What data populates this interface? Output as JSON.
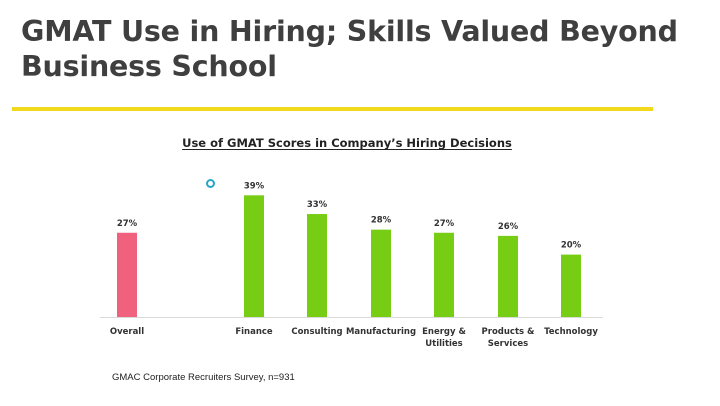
{
  "slide": {
    "title": "GMAT Use in Hiring; Skills Valued Beyond Business School",
    "footnote": "GMAC Corporate Recruiters Survey, n=931"
  },
  "colors": {
    "accent_rule": "#f3d91c",
    "overall_bar": "#f0617e",
    "industry_bar": "#77cc14",
    "marker": "#28a6c8"
  },
  "chart_data": {
    "type": "bar",
    "title": "Use of GMAT Scores in Company’s Hiring Decisions",
    "xlabel": "",
    "ylabel": "",
    "ylim": [
      0,
      45
    ],
    "grid": false,
    "legend": "none",
    "categories": [
      "Overall",
      "Finance",
      "Consulting",
      "Manufacturing",
      "Energy & Utilities",
      "Products & Services",
      "Technology"
    ],
    "category_lines": [
      [
        "Overall"
      ],
      [
        "Finance"
      ],
      [
        "Consulting"
      ],
      [
        "Manufacturing"
      ],
      [
        "Energy &",
        "Utilities"
      ],
      [
        "Products &",
        "Services"
      ],
      [
        "Technology"
      ]
    ],
    "values": [
      27,
      39,
      33,
      28,
      27,
      26,
      20
    ],
    "value_labels": [
      "27%",
      "39%",
      "33%",
      "28%",
      "27%",
      "26%",
      "20%"
    ],
    "bar_colors": [
      "#f0617e",
      "#77cc14",
      "#77cc14",
      "#77cc14",
      "#77cc14",
      "#77cc14",
      "#77cc14"
    ]
  }
}
